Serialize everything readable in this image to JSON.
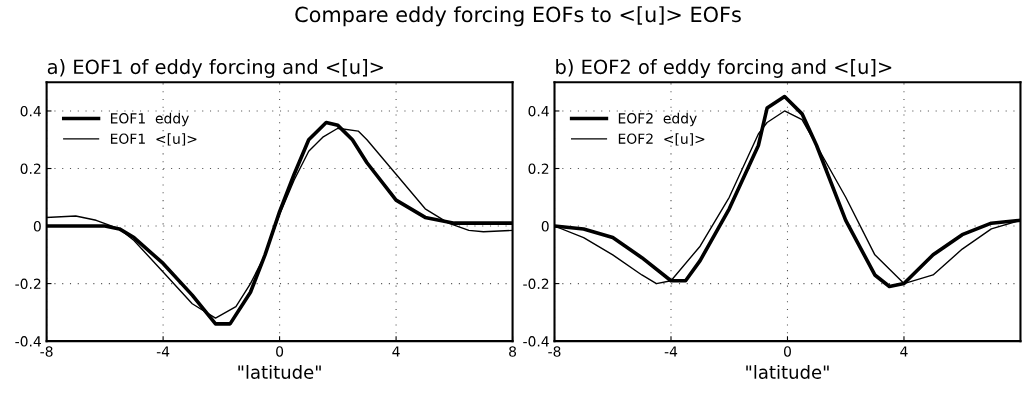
{
  "chart_data": [
    {
      "type": "line",
      "title": "a) EOF1 of eddy forcing and <[u]>",
      "xlabel": "\"latitude\"",
      "annotations": [
        "Compare eddy forcing EOFs to <[u]> EOFs"
      ],
      "xlim": [
        -8,
        8
      ],
      "ylim": [
        -0.4,
        0.5
      ],
      "xticks": [
        -8,
        -4,
        0,
        4,
        8
      ],
      "yticks": [
        -0.4,
        -0.2,
        0,
        0.2,
        0.4
      ],
      "grid": true,
      "legend": "top left",
      "line_style": "solid",
      "series": [
        {
          "name": "EOF1  eddy",
          "color": "#000000",
          "x": [
            -8,
            -7,
            -6,
            -5.5,
            -5,
            -4,
            -3,
            -2.2,
            -1.7,
            -1,
            -0.5,
            0,
            0.5,
            1,
            1.6,
            2,
            2.5,
            3,
            4,
            5,
            6,
            8
          ],
          "values": [
            0,
            0,
            0,
            -0.01,
            -0.04,
            -0.13,
            -0.24,
            -0.34,
            -0.34,
            -0.23,
            -0.1,
            0.05,
            0.18,
            0.3,
            0.36,
            0.35,
            0.3,
            0.22,
            0.09,
            0.03,
            0.01,
            0.01
          ]
        },
        {
          "name": "EOF1  <[u]>",
          "color": "#000000",
          "x": [
            -8,
            -7,
            -6.3,
            -5.5,
            -5,
            -4,
            -3,
            -2.2,
            -1.5,
            -1,
            -0.5,
            0,
            0.5,
            1,
            1.5,
            2,
            2.7,
            3,
            4,
            5,
            5.8,
            6.5,
            7,
            8
          ],
          "values": [
            0.03,
            0.035,
            0.02,
            -0.01,
            -0.05,
            -0.16,
            -0.27,
            -0.32,
            -0.28,
            -0.2,
            -0.1,
            0.04,
            0.16,
            0.26,
            0.31,
            0.34,
            0.33,
            0.3,
            0.18,
            0.06,
            0.01,
            -0.015,
            -0.02,
            -0.015
          ]
        }
      ]
    },
    {
      "type": "line",
      "title": "b) EOF2 of eddy forcing and <[u]>",
      "xlabel": "\"latitude\"",
      "xlim": [
        -8,
        8
      ],
      "ylim": [
        -0.4,
        0.5
      ],
      "xticks": [
        -8,
        -4,
        0,
        4
      ],
      "yticks": [
        -0.4,
        -0.2,
        0,
        0.2,
        0.4
      ],
      "grid": true,
      "legend": "top left",
      "line_style": "solid",
      "series": [
        {
          "name": "EOF2  eddy",
          "color": "#000000",
          "x": [
            -8,
            -7,
            -6,
            -5,
            -4,
            -3.5,
            -3,
            -2,
            -1,
            -0.7,
            -0.1,
            0.5,
            1,
            2,
            3,
            3.5,
            4,
            5,
            6,
            7,
            8
          ],
          "values": [
            0,
            -0.01,
            -0.04,
            -0.11,
            -0.19,
            -0.19,
            -0.12,
            0.06,
            0.28,
            0.41,
            0.45,
            0.39,
            0.28,
            0.02,
            -0.17,
            -0.21,
            -0.2,
            -0.1,
            -0.03,
            0.01,
            0.02
          ]
        },
        {
          "name": "EOF2  <[u]>",
          "color": "#000000",
          "x": [
            -8,
            -7,
            -6,
            -5,
            -4.5,
            -4,
            -3,
            -2,
            -1,
            -0.7,
            -0.1,
            0.5,
            1,
            2,
            3,
            4,
            5,
            6,
            7,
            8
          ],
          "values": [
            0,
            -0.04,
            -0.1,
            -0.17,
            -0.2,
            -0.19,
            -0.07,
            0.1,
            0.32,
            0.36,
            0.4,
            0.37,
            0.28,
            0.1,
            -0.1,
            -0.2,
            -0.17,
            -0.08,
            -0.01,
            0.02
          ]
        }
      ]
    }
  ]
}
